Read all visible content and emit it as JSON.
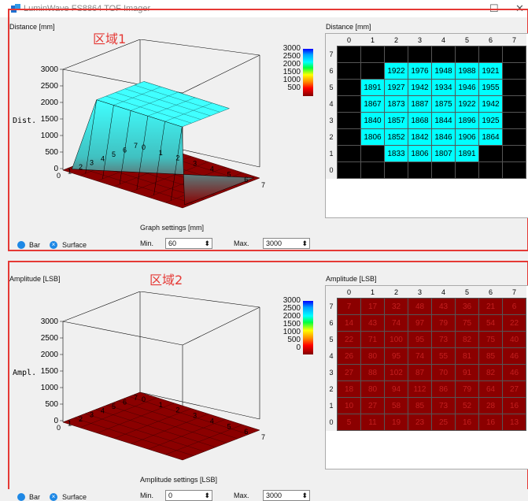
{
  "window": {
    "title": "LuminWave FS8864 TOF Imager",
    "minimize": "—",
    "maximize": "☐",
    "close": "✕"
  },
  "panels": [
    {
      "plot_title": "Distance [mm]",
      "region_label": "区域1",
      "z_label": "Dist.",
      "z_ticks": [
        "3000",
        "2500",
        "2000",
        "1500",
        "1000",
        "500",
        "0"
      ],
      "colorbar_ticks": [
        "3000",
        "2500",
        "2000",
        "1500",
        "1000",
        "500"
      ],
      "settings_title": "Graph settings [mm]",
      "min_label": "Min.",
      "min_value": "60",
      "max_label": "Max.",
      "max_value": "3000",
      "radio_bar": "Bar",
      "radio_surface": "Surface",
      "table_title": "Distance [mm]",
      "col_headers": [
        "0",
        "1",
        "2",
        "3",
        "4",
        "5",
        "6",
        "7"
      ],
      "rows": [
        {
          "r": "7",
          "cells": [
            "",
            "",
            "",
            "",
            "",
            "",
            "",
            ""
          ]
        },
        {
          "r": "6",
          "cells": [
            "",
            "",
            "1922",
            "1976",
            "1948",
            "1988",
            "1921",
            ""
          ]
        },
        {
          "r": "5",
          "cells": [
            "",
            "1891",
            "1927",
            "1942",
            "1934",
            "1946",
            "1955",
            ""
          ]
        },
        {
          "r": "4",
          "cells": [
            "",
            "1867",
            "1873",
            "1887",
            "1875",
            "1922",
            "1942",
            ""
          ]
        },
        {
          "r": "3",
          "cells": [
            "",
            "1840",
            "1857",
            "1868",
            "1844",
            "1896",
            "1925",
            ""
          ]
        },
        {
          "r": "2",
          "cells": [
            "",
            "1806",
            "1852",
            "1842",
            "1846",
            "1906",
            "1864",
            ""
          ]
        },
        {
          "r": "1",
          "cells": [
            "",
            "",
            "1833",
            "1806",
            "1807",
            "1891",
            "",
            ""
          ]
        },
        {
          "r": "0",
          "cells": [
            "",
            "",
            "",
            "",
            "",
            "",
            "",
            ""
          ]
        }
      ]
    },
    {
      "plot_title": "Amplitude [LSB]",
      "region_label": "区域2",
      "z_label": "Ampl.",
      "z_ticks": [
        "3000",
        "2500",
        "2000",
        "1500",
        "1000",
        "500",
        "0"
      ],
      "colorbar_ticks": [
        "3000",
        "2500",
        "2000",
        "1500",
        "1000",
        "500",
        "0"
      ],
      "settings_title": "Amplitude settings [LSB]",
      "min_label": "Min.",
      "min_value": "0",
      "max_label": "Max.",
      "max_value": "3000",
      "radio_bar": "Bar",
      "radio_surface": "Surface",
      "table_title": "Amplitude [LSB]",
      "col_headers": [
        "0",
        "1",
        "2",
        "3",
        "4",
        "5",
        "6",
        "7"
      ],
      "rows": [
        {
          "r": "7",
          "cells": [
            "7",
            "17",
            "32",
            "48",
            "43",
            "36",
            "21",
            "6"
          ]
        },
        {
          "r": "6",
          "cells": [
            "14",
            "43",
            "74",
            "97",
            "79",
            "75",
            "54",
            "22"
          ]
        },
        {
          "r": "5",
          "cells": [
            "22",
            "71",
            "100",
            "95",
            "73",
            "82",
            "75",
            "40"
          ]
        },
        {
          "r": "4",
          "cells": [
            "26",
            "80",
            "95",
            "74",
            "55",
            "81",
            "85",
            "46"
          ]
        },
        {
          "r": "3",
          "cells": [
            "27",
            "88",
            "102",
            "87",
            "70",
            "91",
            "82",
            "46"
          ]
        },
        {
          "r": "2",
          "cells": [
            "18",
            "80",
            "94",
            "112",
            "86",
            "79",
            "64",
            "27"
          ]
        },
        {
          "r": "1",
          "cells": [
            "10",
            "27",
            "58",
            "85",
            "73",
            "52",
            "28",
            "16"
          ]
        },
        {
          "r": "0",
          "cells": [
            "5",
            "11",
            "19",
            "23",
            "25",
            "16",
            "16",
            "13"
          ]
        }
      ]
    }
  ],
  "axis_ticks": [
    "0",
    "1",
    "2",
    "3",
    "4",
    "5",
    "6",
    "7"
  ]
}
